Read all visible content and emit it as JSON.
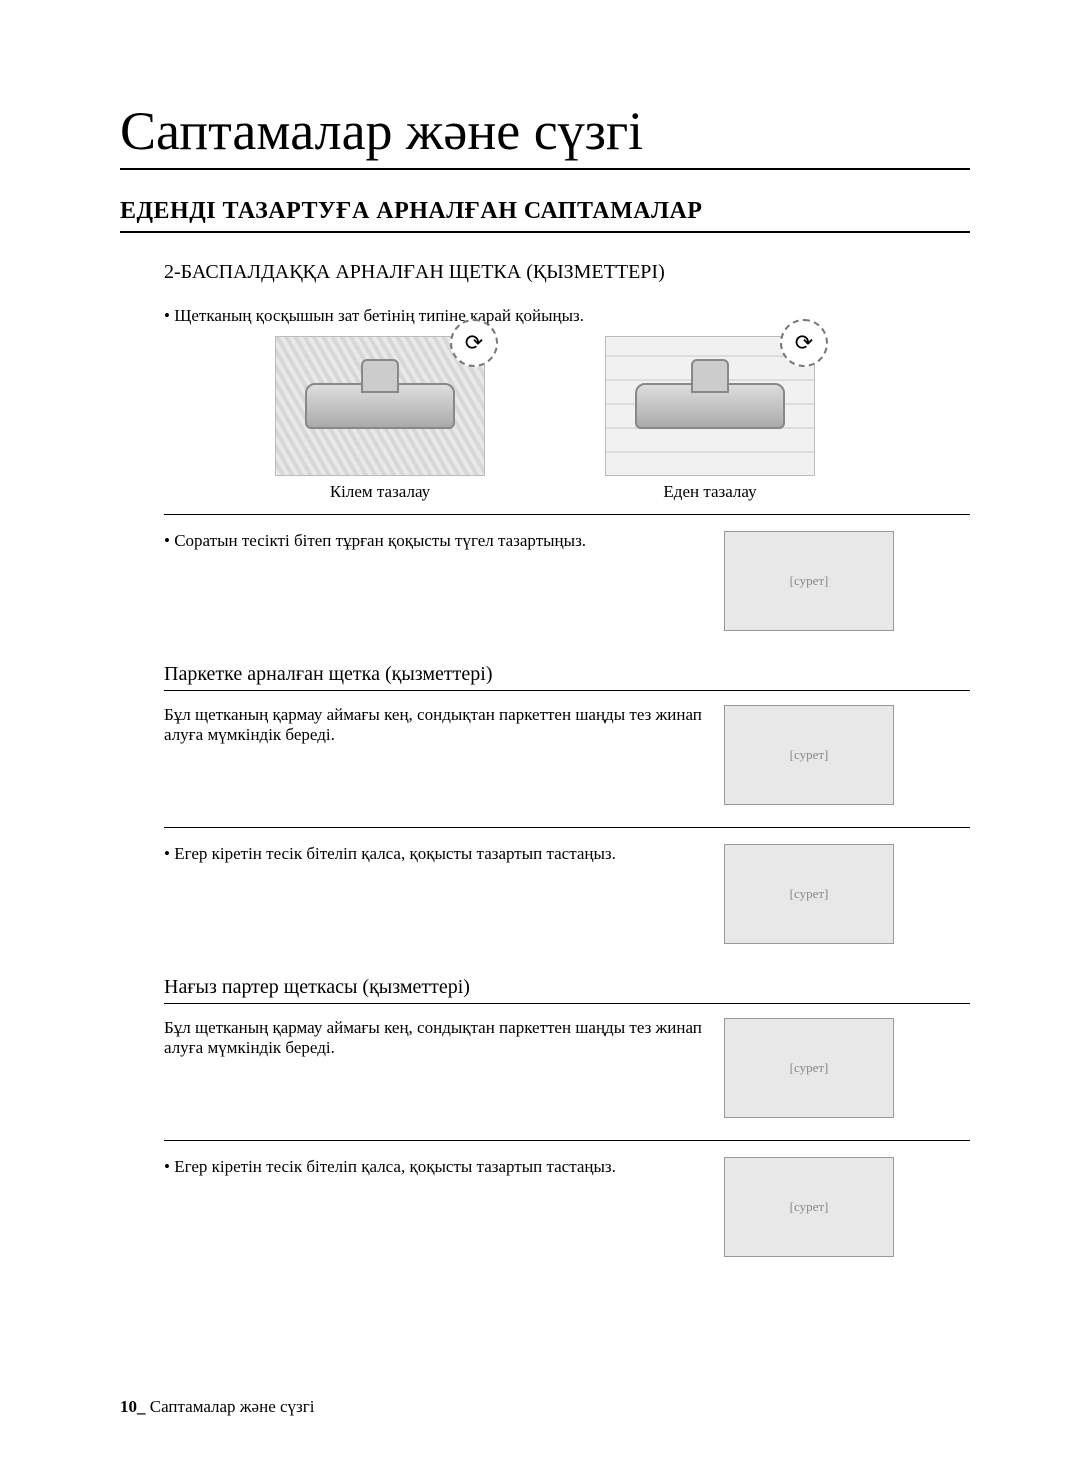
{
  "title": "Саптамалар және сүзгі",
  "h2": "ЕДЕНДІ ТАЗАРТУҒА АРНАЛҒАН САПТАМАЛАР",
  "step_brush": {
    "heading": "2-БАСПАЛДАҚҚА АРНАЛҒАН ЩЕТКА (ҚЫЗМЕТТЕРІ)",
    "bullet": "•  Щетканың қосқышын  зат бетінің типіне қарай қойыңыз.",
    "carpet_caption": "Кілем тазалау",
    "floor_caption": "Еден тазалау",
    "clean_inlet": "• Соратын  тесікті бітеп тұрған қоқысты түгел тазартыңыз."
  },
  "parquet": {
    "heading": "Паркетке арналған щетка (қызметтері)",
    "desc": "Бұл щетканың қармау аймағы кең, сондықтан паркеттен шаңды тез жинап алуға мүмкіндік береді.",
    "clean": "• Егер кіретін тесік бітеліп қалса, қоқысты тазартып тастаңыз."
  },
  "real_parter": {
    "heading": "Нағыз партер щеткасы (қызметтері)",
    "desc": "Бұл щетканың қармау аймағы кең, сондықтан паркеттен шаңды тез жинап алуға мүмкіндік береді.",
    "clean": "• Егер кіретін тесік бітеліп қалса, қоқысты тазартып тастаңыз."
  },
  "footer": {
    "page": "10_",
    "label": " Саптамалар және сүзгі"
  },
  "illustration_label": "[сурет]"
}
